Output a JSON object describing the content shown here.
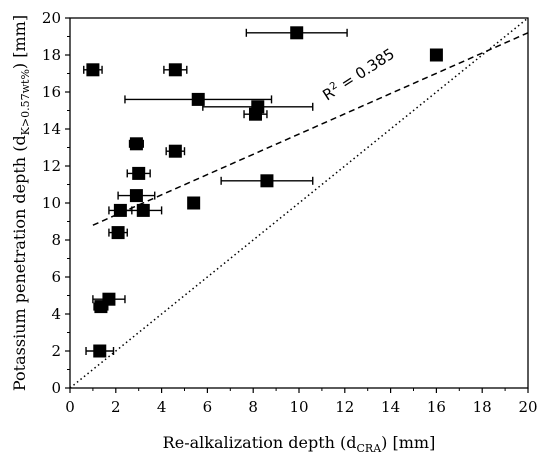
{
  "chart_data": {
    "type": "scatter",
    "xlabel": {
      "main": "Re-alkalization depth (d",
      "sub": "CRA",
      "tail": ") [mm]"
    },
    "ylabel": {
      "main": "Potassium penetration depth (d",
      "sub": "K>0.57wt%",
      "tail": ") [mm]"
    },
    "xlim": [
      0,
      20
    ],
    "ylim": [
      0,
      20
    ],
    "xticks": [
      "0",
      "2",
      "4",
      "6",
      "8",
      "10",
      "12",
      "14",
      "16",
      "18",
      "20"
    ],
    "yticks": [
      "0",
      "2",
      "4",
      "6",
      "8",
      "10",
      "12",
      "14",
      "16",
      "18",
      "20"
    ],
    "annotation": {
      "prefix": "R",
      "sup": "2",
      "value": " = 0.385"
    },
    "trendline": {
      "style": "dashed",
      "x": [
        1.0,
        20.0
      ],
      "y": [
        8.8,
        19.2
      ]
    },
    "identity_line": {
      "style": "dotted",
      "x": [
        0,
        20
      ],
      "y": [
        0,
        20
      ]
    },
    "points": [
      {
        "x": 1.0,
        "y": 17.2,
        "xerr": 0.4
      },
      {
        "x": 1.3,
        "y": 2.0,
        "xerr": 0.6
      },
      {
        "x": 1.35,
        "y": 4.4,
        "xerr": 0.3
      },
      {
        "x": 1.7,
        "y": 4.8,
        "xerr": 0.7
      },
      {
        "x": 2.1,
        "y": 8.4,
        "xerr": 0.4
      },
      {
        "x": 2.2,
        "y": 9.6,
        "xerr": 0.5
      },
      {
        "x": 2.9,
        "y": 13.2,
        "xerr": 0.3
      },
      {
        "x": 2.9,
        "y": 10.4,
        "xerr": 0.8
      },
      {
        "x": 3.0,
        "y": 11.6,
        "xerr": 0.5
      },
      {
        "x": 3.2,
        "y": 9.6,
        "xerr": 0.8
      },
      {
        "x": 4.6,
        "y": 17.2,
        "xerr": 0.5
      },
      {
        "x": 4.6,
        "y": 12.8,
        "xerr": 0.4
      },
      {
        "x": 5.4,
        "y": 10.0,
        "xerr": 0
      },
      {
        "x": 5.6,
        "y": 15.6,
        "xerr": 3.2
      },
      {
        "x": 8.1,
        "y": 14.8,
        "xerr": 0.5
      },
      {
        "x": 8.2,
        "y": 15.2,
        "xerr": 2.4
      },
      {
        "x": 8.6,
        "y": 11.2,
        "xerr": 2.0
      },
      {
        "x": 9.9,
        "y": 19.2,
        "xerr": 2.2
      },
      {
        "x": 16.0,
        "y": 18.0,
        "xerr": 0
      }
    ]
  }
}
